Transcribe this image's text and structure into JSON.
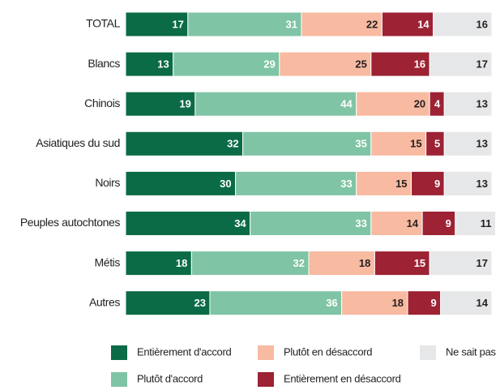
{
  "chart_data": {
    "type": "stacked_barh",
    "categories": [
      "TOTAL",
      "Blancs",
      "Chinois",
      "Asiatiques du sud",
      "Noirs",
      "Peuples autochtones",
      "Métis",
      "Autres"
    ],
    "xlim": [
      0,
      100
    ],
    "series": [
      {
        "name": "Entièrement d'accord",
        "color": "#0b6b46",
        "label_color": "#ffffff",
        "values": [
          17,
          13,
          19,
          32,
          30,
          34,
          18,
          23
        ]
      },
      {
        "name": "Plutôt d'accord",
        "color": "#7fc4a5",
        "label_color": "#ffffff",
        "values": [
          31,
          29,
          44,
          35,
          33,
          33,
          32,
          36
        ]
      },
      {
        "name": "Plutôt en désaccord",
        "color": "#f8baa1",
        "label_color": "#231f20",
        "values": [
          22,
          25,
          20,
          15,
          15,
          14,
          18,
          18
        ]
      },
      {
        "name": "Entièrement en désaccord",
        "color": "#9c2234",
        "label_color": "#ffffff",
        "values": [
          14,
          16,
          4,
          5,
          9,
          9,
          15,
          9
        ]
      },
      {
        "name": "Ne sait pas",
        "color": "#e6e7e8",
        "label_color": "#231f20",
        "values": [
          16,
          17,
          13,
          13,
          13,
          11,
          17,
          14
        ]
      }
    ]
  }
}
